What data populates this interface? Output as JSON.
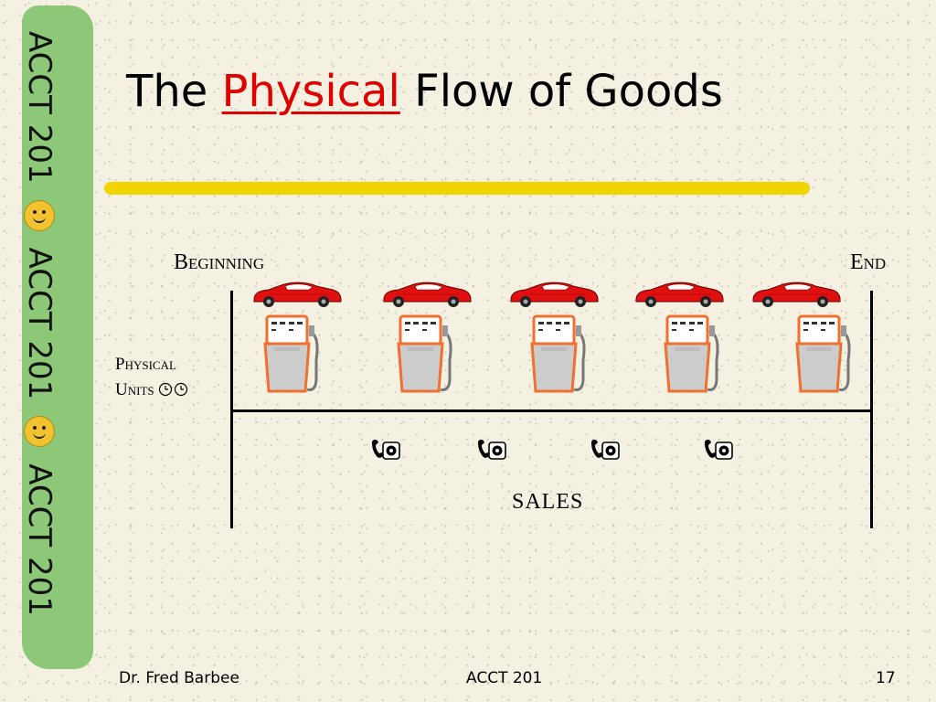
{
  "sidebar": {
    "segments": [
      "ACCT 201",
      "ACCT 201",
      "ACCT 201"
    ]
  },
  "title": {
    "prefix": "The",
    "highlight": "Physical",
    "suffix": "Flow of Goods"
  },
  "diagram": {
    "beginning_label": "Beginning",
    "end_label": "End",
    "units_label_line1": "Physical",
    "units_label_line2": "Units",
    "sales_label": "SALES",
    "car_count": 5,
    "pump_count": 5,
    "phone_count": 4,
    "colors": {
      "car": "#e01010",
      "pump": "#f07030",
      "highlight_bar": "#f2d400",
      "title_accent": "#e00000",
      "sidebar": "#8cc878"
    },
    "icons": [
      "car-icon",
      "gas-pump-icon",
      "telephone-icon",
      "clock-icon",
      "smiley-icon"
    ]
  },
  "footer": {
    "author": "Dr. Fred Barbee",
    "course": "ACCT 201",
    "page": "17"
  }
}
